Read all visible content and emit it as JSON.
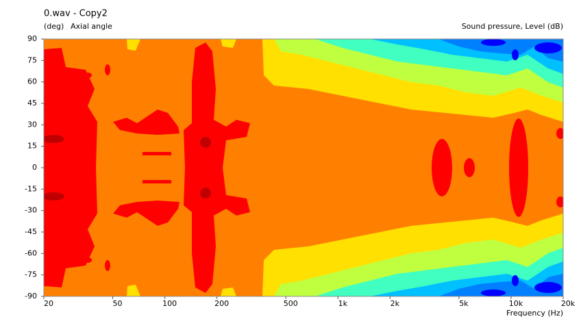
{
  "chart_data": {
    "type": "contour",
    "title": "0.wav - Copy2",
    "y_unit": "(deg)",
    "y_label": "Axial angle",
    "value_label": "Sound pressure, Level  (dB)",
    "x_label": "Frequency  (Hz)",
    "log_x": true,
    "xlim": [
      20,
      20000
    ],
    "ylim": [
      -90,
      90
    ],
    "xticks": [
      20,
      50,
      100,
      200,
      500,
      {
        "value": 1000,
        "label": "1k"
      },
      {
        "value": 2000,
        "label": "2k"
      },
      {
        "value": 5000,
        "label": "5k"
      },
      {
        "value": 10000,
        "label": "10k"
      },
      {
        "value": 20000,
        "label": "20k"
      }
    ],
    "yticks": [
      90,
      75,
      60,
      45,
      30,
      15,
      0,
      -15,
      -30,
      -45,
      -60,
      -75,
      -90
    ]
  }
}
